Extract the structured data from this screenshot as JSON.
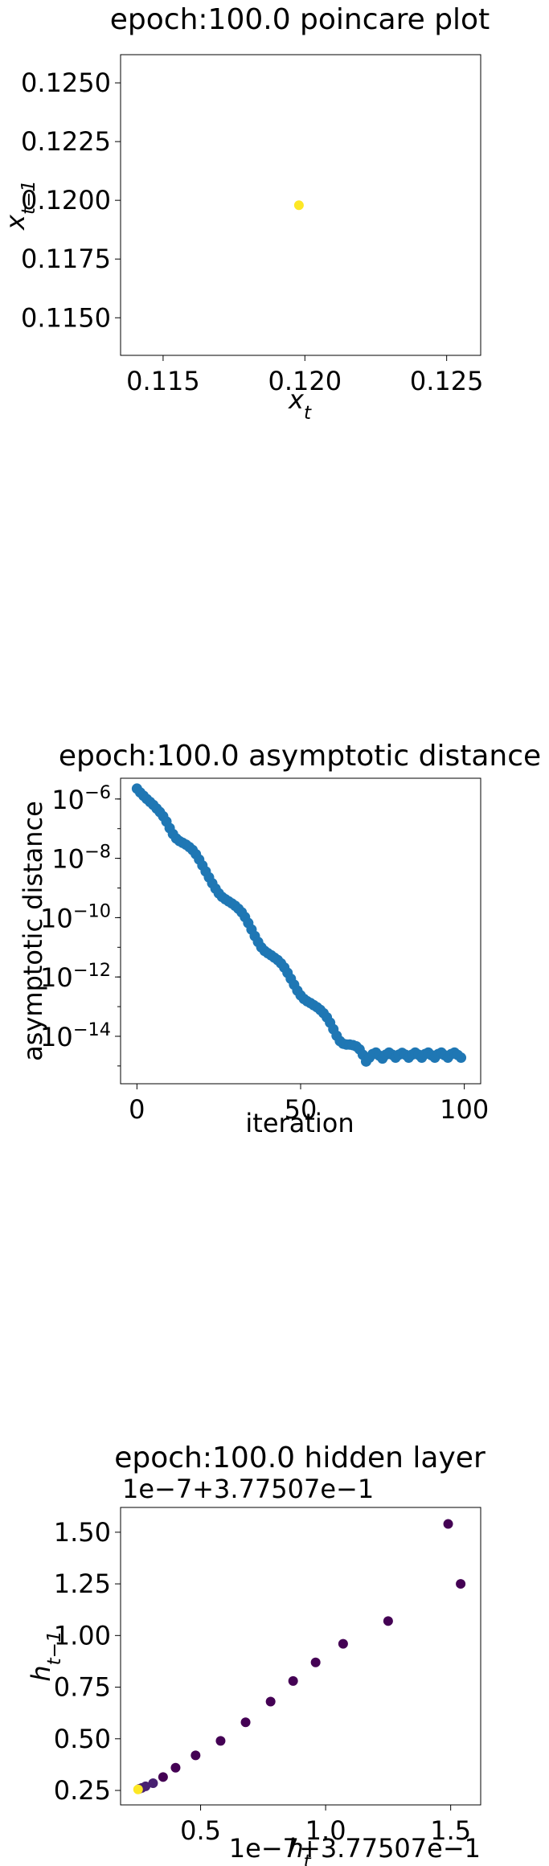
{
  "chart_data": [
    {
      "type": "scatter",
      "title": "epoch:100.0 poincare plot",
      "xlabel": "x",
      "xlabel_sub": "t",
      "ylabel": "x",
      "ylabel_sub": "t−1",
      "xlim": [
        0.1135,
        0.1262
      ],
      "ylim": [
        0.1134,
        0.1262
      ],
      "xticks": [
        0.115,
        0.12,
        0.125
      ],
      "xtick_labels": [
        "0.115",
        "0.120",
        "0.125"
      ],
      "yticks": [
        0.115,
        0.1175,
        0.12,
        0.1225,
        0.125
      ],
      "ytick_labels": [
        "0.1150",
        "0.1175",
        "0.1200",
        "0.1225",
        "0.1250"
      ],
      "grid": false,
      "colors": {
        "point": "#fde725"
      },
      "points": [
        {
          "x": 0.11979,
          "y": 0.11979
        }
      ]
    },
    {
      "type": "scatter",
      "title": "epoch:100.0 asymptotic distance",
      "xlabel": "iteration",
      "ylabel": "asymptotic distance",
      "yscale": "log",
      "xlim": [
        -5,
        105
      ],
      "ylim_log10": [
        -15.6,
        -5.3
      ],
      "xticks": [
        0,
        50,
        100
      ],
      "xtick_labels": [
        "0",
        "50",
        "100"
      ],
      "yticks_log10": [
        -6,
        -8,
        -10,
        -12,
        -14
      ],
      "ytick_base": "10",
      "ytick_exponents": [
        "−6",
        "−8",
        "−10",
        "−12",
        "−14"
      ],
      "grid": false,
      "colors": {
        "point": "#1f77b4"
      },
      "x": [
        0,
        1,
        2,
        3,
        4,
        5,
        6,
        7,
        8,
        9,
        10,
        11,
        12,
        13,
        14,
        15,
        16,
        17,
        18,
        19,
        20,
        21,
        22,
        23,
        24,
        25,
        26,
        27,
        28,
        29,
        30,
        31,
        32,
        33,
        34,
        35,
        36,
        37,
        38,
        39,
        40,
        41,
        42,
        43,
        44,
        45,
        46,
        47,
        48,
        49,
        50,
        51,
        52,
        53,
        54,
        55,
        56,
        57,
        58,
        59,
        60,
        61,
        62,
        63,
        64,
        65,
        66,
        67,
        68,
        69,
        70,
        71,
        72,
        73,
        74,
        75,
        76,
        77,
        78,
        79,
        80,
        81,
        82,
        83,
        84,
        85,
        86,
        87,
        88,
        89,
        90,
        91,
        92,
        93,
        94,
        95,
        96,
        97,
        98,
        99
      ],
      "y_log10": [
        -5.65,
        -5.78,
        -5.89,
        -6.0,
        -6.1,
        -6.2,
        -6.32,
        -6.44,
        -6.58,
        -6.76,
        -6.98,
        -7.18,
        -7.33,
        -7.42,
        -7.48,
        -7.54,
        -7.62,
        -7.72,
        -7.86,
        -8.04,
        -8.24,
        -8.44,
        -8.64,
        -8.84,
        -9.02,
        -9.18,
        -9.3,
        -9.38,
        -9.45,
        -9.52,
        -9.6,
        -9.7,
        -9.82,
        -9.98,
        -10.18,
        -10.4,
        -10.62,
        -10.82,
        -11.0,
        -11.12,
        -11.2,
        -11.27,
        -11.35,
        -11.43,
        -11.54,
        -11.68,
        -11.86,
        -12.06,
        -12.26,
        -12.46,
        -12.62,
        -12.74,
        -12.82,
        -12.88,
        -12.95,
        -13.02,
        -13.11,
        -13.22,
        -13.36,
        -13.54,
        -13.76,
        -13.98,
        -14.16,
        -14.25,
        -14.28,
        -14.28,
        -14.3,
        -14.34,
        -14.44,
        -14.62,
        -14.85,
        -14.72,
        -14.6,
        -14.55,
        -14.65,
        -14.75,
        -14.62,
        -14.55,
        -14.62,
        -14.72,
        -14.62,
        -14.56,
        -14.62,
        -14.72,
        -14.62,
        -14.55,
        -14.62,
        -14.72,
        -14.6,
        -14.55,
        -14.64,
        -14.72,
        -14.6,
        -14.55,
        -14.64,
        -14.72,
        -14.6,
        -14.55,
        -14.63,
        -14.72
      ]
    },
    {
      "type": "scatter",
      "title": "epoch:100.0 hidden layer",
      "xlabel": "h",
      "xlabel_sub": "t",
      "ylabel": "h",
      "ylabel_sub": "t−1",
      "x_offset_text": "1e−7+3.77507e−1",
      "y_offset_text": "1e−7+3.77507e−1",
      "xlim": [
        0.18,
        1.62
      ],
      "ylim": [
        0.18,
        1.62
      ],
      "xticks": [
        0.5,
        1.0,
        1.5
      ],
      "xtick_labels": [
        "0.5",
        "1.0",
        "1.5"
      ],
      "yticks": [
        0.25,
        0.5,
        0.75,
        1.0,
        1.25,
        1.5
      ],
      "ytick_labels": [
        "0.25",
        "0.50",
        "0.75",
        "1.00",
        "1.25",
        "1.50"
      ],
      "grid": false,
      "colors": {
        "early": "#440154",
        "late": "#482071",
        "last": "#fde725"
      },
      "points": [
        {
          "x": 1.49,
          "y": 1.54,
          "c": "early"
        },
        {
          "x": 1.54,
          "y": 1.25,
          "c": "early"
        },
        {
          "x": 1.25,
          "y": 1.07,
          "c": "early"
        },
        {
          "x": 1.07,
          "y": 0.96,
          "c": "early"
        },
        {
          "x": 0.96,
          "y": 0.87,
          "c": "early"
        },
        {
          "x": 0.87,
          "y": 0.78,
          "c": "early"
        },
        {
          "x": 0.78,
          "y": 0.68,
          "c": "early"
        },
        {
          "x": 0.68,
          "y": 0.58,
          "c": "early"
        },
        {
          "x": 0.58,
          "y": 0.49,
          "c": "early"
        },
        {
          "x": 0.48,
          "y": 0.42,
          "c": "early"
        },
        {
          "x": 0.4,
          "y": 0.36,
          "c": "early"
        },
        {
          "x": 0.35,
          "y": 0.315,
          "c": "early"
        },
        {
          "x": 0.31,
          "y": 0.285,
          "c": "late"
        },
        {
          "x": 0.28,
          "y": 0.27,
          "c": "late"
        },
        {
          "x": 0.265,
          "y": 0.262,
          "c": "late"
        },
        {
          "x": 0.255,
          "y": 0.258,
          "c": "late"
        },
        {
          "x": 0.25,
          "y": 0.255,
          "c": "last"
        }
      ]
    }
  ]
}
